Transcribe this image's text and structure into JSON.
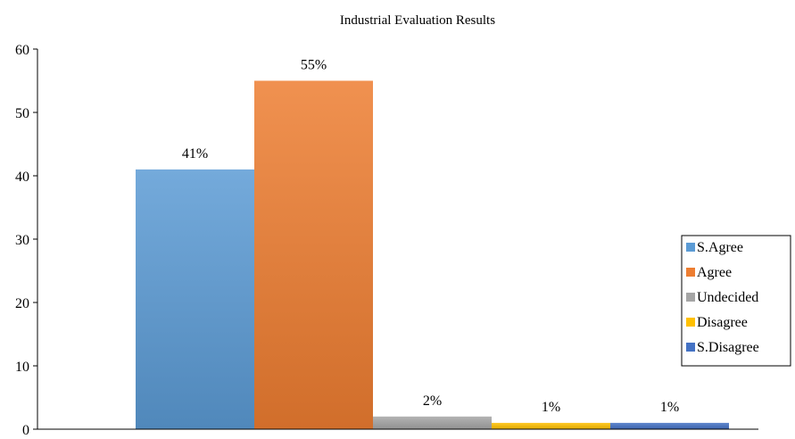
{
  "chart_data": {
    "type": "bar",
    "title": "Industrial Evaluation Results",
    "xlabel": "",
    "ylabel": "",
    "ylim": [
      0,
      60
    ],
    "yticks": [
      0,
      10,
      20,
      30,
      40,
      50,
      60
    ],
    "grid": false,
    "legend_position": "right",
    "series": [
      {
        "name": "S.Agree",
        "value": 41,
        "label": "41%",
        "color": "#5b9bd5"
      },
      {
        "name": "Agree",
        "value": 55,
        "label": "55%",
        "color": "#ed7d31"
      },
      {
        "name": "Undecided",
        "value": 2,
        "label": "2%",
        "color": "#a5a5a5"
      },
      {
        "name": "Disagree",
        "value": 1,
        "label": "1%",
        "color": "#ffc000"
      },
      {
        "name": "S.Disagree",
        "value": 1,
        "label": "1%",
        "color": "#4472c4"
      }
    ]
  }
}
